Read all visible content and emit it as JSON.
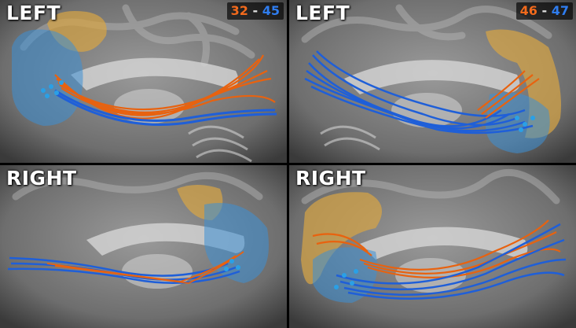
{
  "panels": [
    {
      "side": "LEFT",
      "id_a": "32",
      "sep": "-",
      "id_b": "45"
    },
    {
      "side": "LEFT",
      "id_a": "46",
      "sep": "-",
      "id_b": "47"
    },
    {
      "side": "RIGHT",
      "id_a": "",
      "sep": "",
      "id_b": ""
    },
    {
      "side": "RIGHT",
      "id_a": "",
      "sep": "",
      "id_b": ""
    }
  ],
  "colors": {
    "tract_orange": "#e8620f",
    "tract_blue": "#1f5fd8",
    "region_yellow": "#d9a545",
    "region_blue": "#3d8fd6",
    "brain_gray": "#8a8a8a"
  }
}
